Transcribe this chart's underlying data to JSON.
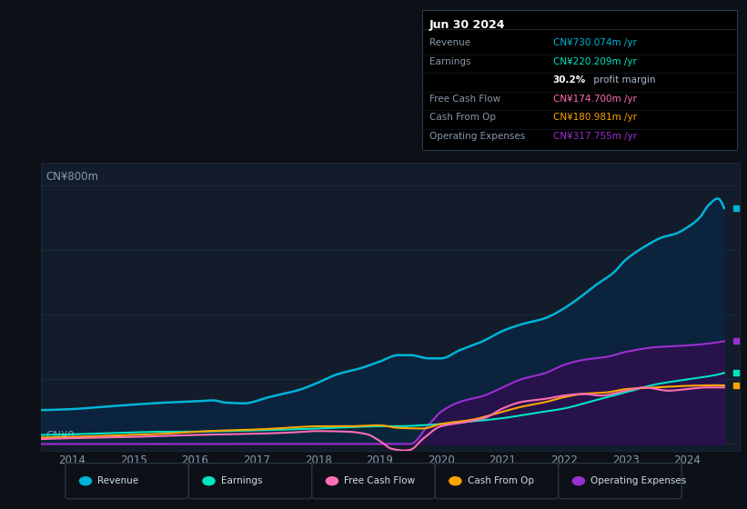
{
  "background_color": "#0d1117",
  "plot_bg_color": "#131c2a",
  "xlim": [
    2013.5,
    2024.85
  ],
  "ylim": [
    -20,
    870
  ],
  "x_ticks": [
    2014,
    2015,
    2016,
    2017,
    2018,
    2019,
    2020,
    2021,
    2022,
    2023,
    2024
  ],
  "y_label_top": "CN¥800m",
  "y_label_bot": "CN¥0",
  "grid_color": "#1e2d3d",
  "grid_y": [
    0,
    200,
    400,
    600,
    800
  ],
  "series_colors": {
    "Revenue": "#00b4d8",
    "Earnings": "#00e5c0",
    "FreeCashFlow": "#ff6eb4",
    "CashFromOp": "#ffa500",
    "OperatingExpenses": "#9b30d0"
  },
  "fill_colors": {
    "Revenue": "#0a2540",
    "Earnings": "#0a3028",
    "OperatingExpenses": "#2d1050"
  },
  "Revenue_pts": {
    "x": [
      2013.5,
      2014.0,
      2014.5,
      2015.0,
      2015.5,
      2016.0,
      2016.3,
      2016.5,
      2016.8,
      2017.2,
      2017.7,
      2018.0,
      2018.3,
      2018.7,
      2019.0,
      2019.3,
      2019.5,
      2019.8,
      2020.0,
      2020.3,
      2020.7,
      2021.0,
      2021.3,
      2021.7,
      2022.0,
      2022.3,
      2022.5,
      2022.8,
      2023.0,
      2023.3,
      2023.6,
      2023.8,
      2024.0,
      2024.2,
      2024.35,
      2024.5,
      2024.6
    ],
    "y": [
      105,
      108,
      115,
      122,
      128,
      132,
      135,
      128,
      126,
      145,
      168,
      190,
      215,
      235,
      255,
      275,
      275,
      265,
      265,
      290,
      320,
      350,
      370,
      390,
      420,
      460,
      490,
      530,
      570,
      610,
      640,
      650,
      670,
      700,
      740,
      760,
      730
    ]
  },
  "Earnings_pts": {
    "x": [
      2013.5,
      2014.0,
      2014.5,
      2015.0,
      2015.5,
      2016.0,
      2016.5,
      2017.0,
      2017.5,
      2018.0,
      2018.5,
      2019.0,
      2019.3,
      2019.7,
      2020.0,
      2020.5,
      2021.0,
      2021.5,
      2022.0,
      2022.5,
      2023.0,
      2023.5,
      2024.0,
      2024.5,
      2024.6
    ],
    "y": [
      28,
      30,
      33,
      36,
      38,
      38,
      40,
      42,
      45,
      48,
      52,
      55,
      55,
      58,
      62,
      70,
      80,
      95,
      110,
      135,
      160,
      185,
      200,
      215,
      220
    ]
  },
  "FreeCashFlow_pts": {
    "x": [
      2013.5,
      2014.0,
      2014.5,
      2015.0,
      2015.5,
      2016.0,
      2016.5,
      2017.0,
      2017.5,
      2018.0,
      2018.5,
      2018.8,
      2019.0,
      2019.2,
      2019.4,
      2019.5,
      2019.7,
      2020.0,
      2020.3,
      2020.7,
      2021.0,
      2021.3,
      2021.7,
      2022.0,
      2022.3,
      2022.6,
      2023.0,
      2023.3,
      2023.7,
      2024.0,
      2024.3,
      2024.6
    ],
    "y": [
      15,
      18,
      20,
      22,
      25,
      28,
      30,
      32,
      35,
      40,
      38,
      30,
      10,
      -15,
      -20,
      -18,
      15,
      55,
      65,
      80,
      110,
      130,
      140,
      150,
      155,
      150,
      165,
      175,
      165,
      170,
      175,
      175
    ]
  },
  "CashFromOp_pts": {
    "x": [
      2013.5,
      2014.0,
      2014.5,
      2015.0,
      2015.5,
      2016.0,
      2016.5,
      2017.0,
      2017.5,
      2018.0,
      2018.5,
      2019.0,
      2019.3,
      2019.7,
      2020.0,
      2020.5,
      2021.0,
      2021.3,
      2021.7,
      2022.0,
      2022.3,
      2022.7,
      2023.0,
      2023.5,
      2024.0,
      2024.5,
      2024.6
    ],
    "y": [
      20,
      22,
      25,
      28,
      32,
      38,
      42,
      45,
      50,
      55,
      55,
      58,
      50,
      48,
      62,
      75,
      100,
      115,
      130,
      145,
      155,
      160,
      170,
      175,
      180,
      182,
      181
    ]
  },
  "OperatingExpenses_pts": {
    "x": [
      2013.5,
      2014.0,
      2015.0,
      2016.0,
      2017.0,
      2018.0,
      2019.0,
      2019.5,
      2019.8,
      2020.0,
      2020.3,
      2020.7,
      2021.0,
      2021.3,
      2021.7,
      2022.0,
      2022.3,
      2022.7,
      2023.0,
      2023.5,
      2024.0,
      2024.3,
      2024.6
    ],
    "y": [
      0,
      0,
      0,
      0,
      0,
      0,
      0,
      0,
      60,
      100,
      130,
      150,
      175,
      200,
      220,
      245,
      260,
      270,
      285,
      300,
      305,
      310,
      318
    ]
  },
  "legend": [
    {
      "label": "Revenue",
      "color": "#00b4d8"
    },
    {
      "label": "Earnings",
      "color": "#00e5c0"
    },
    {
      "label": "Free Cash Flow",
      "color": "#ff6eb4"
    },
    {
      "label": "Cash From Op",
      "color": "#ffa500"
    },
    {
      "label": "Operating Expenses",
      "color": "#9b30d0"
    }
  ],
  "tooltip": {
    "date": "Jun 30 2024",
    "rows": [
      {
        "label": "Revenue",
        "value": "CN¥730.074m /yr",
        "color": "#00b4d8"
      },
      {
        "label": "Earnings",
        "value": "CN¥220.209m /yr",
        "color": "#00e5c0"
      },
      {
        "label": "",
        "value": "30.2% profit margin",
        "color": "#ffffff"
      },
      {
        "label": "Free Cash Flow",
        "value": "CN¥174.700m /yr",
        "color": "#ff6eb4"
      },
      {
        "label": "Cash From Op",
        "value": "CN¥180.981m /yr",
        "color": "#ffa500"
      },
      {
        "label": "Operating Expenses",
        "value": "CN¥317.755m /yr",
        "color": "#9b30d0"
      }
    ]
  }
}
